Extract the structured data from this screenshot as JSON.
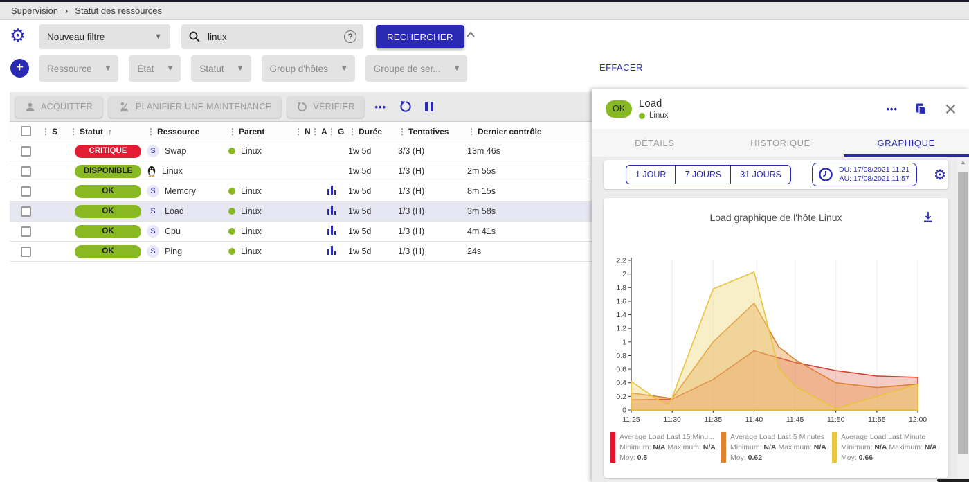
{
  "breadcrumb": {
    "items": [
      "Supervision",
      "Statut des ressources"
    ]
  },
  "filters": {
    "saved_filter": "Nouveau filtre",
    "search_value": "linux",
    "search_button": "RECHERCHER",
    "criterias": [
      "Ressource",
      "État",
      "Statut",
      "Group d'hôtes",
      "Groupe de ser..."
    ],
    "clear_button": "EFFACER"
  },
  "toolbar": {
    "acknowledge": "ACQUITTER",
    "maintenance": "PLANIFIER UNE MAINTENANCE",
    "check": "VÉRIFIER"
  },
  "table": {
    "columns": [
      "S",
      "Statut",
      "Ressource",
      "Parent",
      "N",
      "A",
      "G",
      "Durée",
      "Tentatives",
      "Dernier contrôle"
    ],
    "rows": [
      {
        "status": "CRITIQUE",
        "status_color": "#e31b33",
        "status_text_color": "#ffffff",
        "resource": "Swap",
        "resource_icon": "service",
        "parent": "Linux",
        "has_graph": false,
        "duration": "1w 5d",
        "tries": "3/3 (H)",
        "last_check": "13m 46s",
        "selected": false
      },
      {
        "status": "DISPONIBLE",
        "status_color": "#88b822",
        "status_text_color": "#1c1c1c",
        "resource": "Linux",
        "resource_icon": "penguin",
        "parent": "",
        "has_graph": false,
        "duration": "1w 5d",
        "tries": "1/3 (H)",
        "last_check": "2m 55s",
        "selected": false
      },
      {
        "status": "OK",
        "status_color": "#88b822",
        "status_text_color": "#1c1c1c",
        "resource": "Memory",
        "resource_icon": "service",
        "parent": "Linux",
        "has_graph": true,
        "duration": "1w 5d",
        "tries": "1/3 (H)",
        "last_check": "8m 15s",
        "selected": false
      },
      {
        "status": "OK",
        "status_color": "#88b822",
        "status_text_color": "#1c1c1c",
        "resource": "Load",
        "resource_icon": "service",
        "parent": "Linux",
        "has_graph": true,
        "duration": "1w 5d",
        "tries": "1/3 (H)",
        "last_check": "3m 58s",
        "selected": true
      },
      {
        "status": "OK",
        "status_color": "#88b822",
        "status_text_color": "#1c1c1c",
        "resource": "Cpu",
        "resource_icon": "service",
        "parent": "Linux",
        "has_graph": true,
        "duration": "1w 5d",
        "tries": "1/3 (H)",
        "last_check": "4m 41s",
        "selected": false
      },
      {
        "status": "OK",
        "status_color": "#88b822",
        "status_text_color": "#1c1c1c",
        "resource": "Ping",
        "resource_icon": "service",
        "parent": "Linux",
        "has_graph": true,
        "duration": "1w 5d",
        "tries": "1/3 (H)",
        "last_check": "24s",
        "selected": false
      }
    ]
  },
  "panel": {
    "status": "OK",
    "title": "Load",
    "subtitle": "Linux",
    "tabs": [
      "DÉTAILS",
      "HISTORIQUE",
      "GRAPHIQUE"
    ],
    "active_tab": "GRAPHIQUE",
    "range_buttons": [
      "1 JOUR",
      "7 JOURS",
      "31 JOURS"
    ],
    "date_from": "DU: 17/08/2021 11:21",
    "date_to": "AU: 17/08/2021 11:57"
  },
  "chart_data": {
    "type": "area",
    "title": "Load graphique de l'hôte Linux",
    "x_ticks": [
      "11:25",
      "11:30",
      "11:35",
      "11:40",
      "11:45",
      "11:50",
      "11:55",
      "12:00"
    ],
    "x_range_minutes": [
      0,
      35
    ],
    "ylim": [
      0,
      2.2
    ],
    "y_ticks": [
      0,
      0.2,
      0.4,
      0.6,
      0.8,
      1,
      1.2,
      1.4,
      1.6,
      1.8,
      2,
      2.2
    ],
    "grid": "vertical",
    "legend_labels": {
      "min": "Minimum:",
      "max": "Maximum:",
      "avg": "Moy:"
    },
    "series": [
      {
        "name": "Average Load Last 15 Minu...",
        "swatch_color": "#e8142d",
        "line_color": "#d24331",
        "fill_color": "rgba(218,70,50,0.28)",
        "min": "N/A",
        "max": "N/A",
        "avg": "0.5",
        "points": [
          [
            0,
            0.15
          ],
          [
            5,
            0.16
          ],
          [
            10,
            0.45
          ],
          [
            15,
            0.87
          ],
          [
            20,
            0.7
          ],
          [
            25,
            0.58
          ],
          [
            30,
            0.5
          ],
          [
            35,
            0.48
          ]
        ]
      },
      {
        "name": "Average Load Last 5 Minutes",
        "swatch_color": "#e1832b",
        "line_color": "#df8230",
        "fill_color": "rgba(228,150,70,0.42)",
        "min": "N/A",
        "max": "N/A",
        "avg": "0.62",
        "points": [
          [
            0,
            0.25
          ],
          [
            5,
            0.17
          ],
          [
            10,
            1.0
          ],
          [
            15,
            1.57
          ],
          [
            18,
            0.93
          ],
          [
            20,
            0.74
          ],
          [
            25,
            0.4
          ],
          [
            30,
            0.33
          ],
          [
            35,
            0.38
          ]
        ]
      },
      {
        "name": "Average Load Last Minute",
        "swatch_color": "#eac63e",
        "line_color": "#e9c33c",
        "fill_color": "rgba(238,214,118,0.40)",
        "min": "N/A",
        "max": "N/A",
        "avg": "0.66",
        "points": [
          [
            0,
            0.42
          ],
          [
            3,
            0.17
          ],
          [
            4.5,
            0.08
          ],
          [
            5,
            0.18
          ],
          [
            10,
            1.78
          ],
          [
            15,
            2.03
          ],
          [
            18,
            0.62
          ],
          [
            20,
            0.35
          ],
          [
            25,
            0.02
          ],
          [
            30,
            0.2
          ],
          [
            35,
            0.38
          ]
        ]
      }
    ]
  }
}
